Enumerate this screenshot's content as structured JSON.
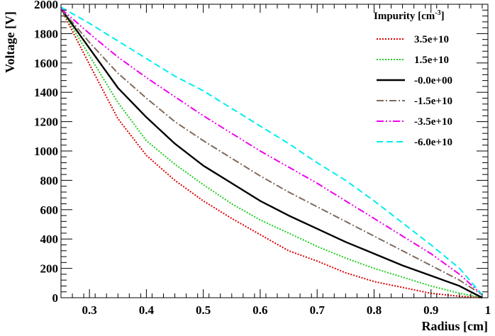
{
  "chart_data": {
    "type": "line",
    "title": "",
    "xlabel": "Radius [cm]",
    "ylabel": "Voltage [V]",
    "xlim": [
      0.25,
      1.0
    ],
    "ylim": [
      0,
      2000
    ],
    "xticks": [
      0.3,
      0.4,
      0.5,
      0.6,
      0.7,
      0.8,
      0.9,
      1.0
    ],
    "xtick_labels": [
      "0.3",
      "0.4",
      "0.5",
      "0.6",
      "0.7",
      "0.8",
      "0.9",
      "1"
    ],
    "yticks": [
      0,
      200,
      400,
      600,
      800,
      1000,
      1200,
      1400,
      1600,
      1800,
      2000
    ],
    "ytick_labels": [
      "0",
      "200",
      "400",
      "600",
      "800",
      "1000",
      "1200",
      "1400",
      "1600",
      "1800",
      "2000"
    ],
    "grid": false,
    "legend": {
      "title_main": "Impurity [cm",
      "title_sup": "-3",
      "title_end": "]",
      "position": "top-right"
    },
    "x": [
      0.25,
      0.3,
      0.35,
      0.4,
      0.45,
      0.5,
      0.55,
      0.6,
      0.65,
      0.7,
      0.75,
      0.8,
      0.85,
      0.9,
      0.95,
      0.99
    ],
    "series": [
      {
        "name": "3.5e+10",
        "color": "#dd0000",
        "dash": "dotted",
        "values": [
          1970,
          1590,
          1220,
          970,
          800,
          660,
          540,
          430,
          320,
          250,
          170,
          110,
          70,
          30,
          10,
          0
        ]
      },
      {
        "name": "1.5e+10",
        "color": "#22cc22",
        "dash": "dotted",
        "values": [
          1970,
          1650,
          1330,
          1070,
          910,
          770,
          640,
          530,
          440,
          350,
          270,
          200,
          140,
          80,
          30,
          0
        ]
      },
      {
        "name": "-0.0e+00",
        "color": "#000000",
        "dash": "solid",
        "values": [
          1970,
          1700,
          1430,
          1230,
          1050,
          900,
          780,
          660,
          560,
          470,
          380,
          300,
          220,
          150,
          80,
          0
        ]
      },
      {
        "name": "-1.5e+10",
        "color": "#7f6a5c",
        "dash": "dashdot",
        "values": [
          1970,
          1740,
          1530,
          1360,
          1200,
          1070,
          950,
          830,
          720,
          620,
          520,
          420,
          320,
          220,
          120,
          20
        ]
      },
      {
        "name": "-3.5e+10",
        "color": "#ee00ee",
        "dash": "dashdotdot",
        "values": [
          1970,
          1800,
          1640,
          1500,
          1370,
          1240,
          1120,
          1000,
          890,
          780,
          660,
          540,
          420,
          300,
          160,
          20
        ]
      },
      {
        "name": "-6.0e+10",
        "color": "#00eeee",
        "dash": "dashed",
        "values": [
          1980,
          1870,
          1750,
          1630,
          1510,
          1410,
          1290,
          1170,
          1050,
          920,
          800,
          660,
          510,
          360,
          200,
          20
        ]
      }
    ]
  }
}
